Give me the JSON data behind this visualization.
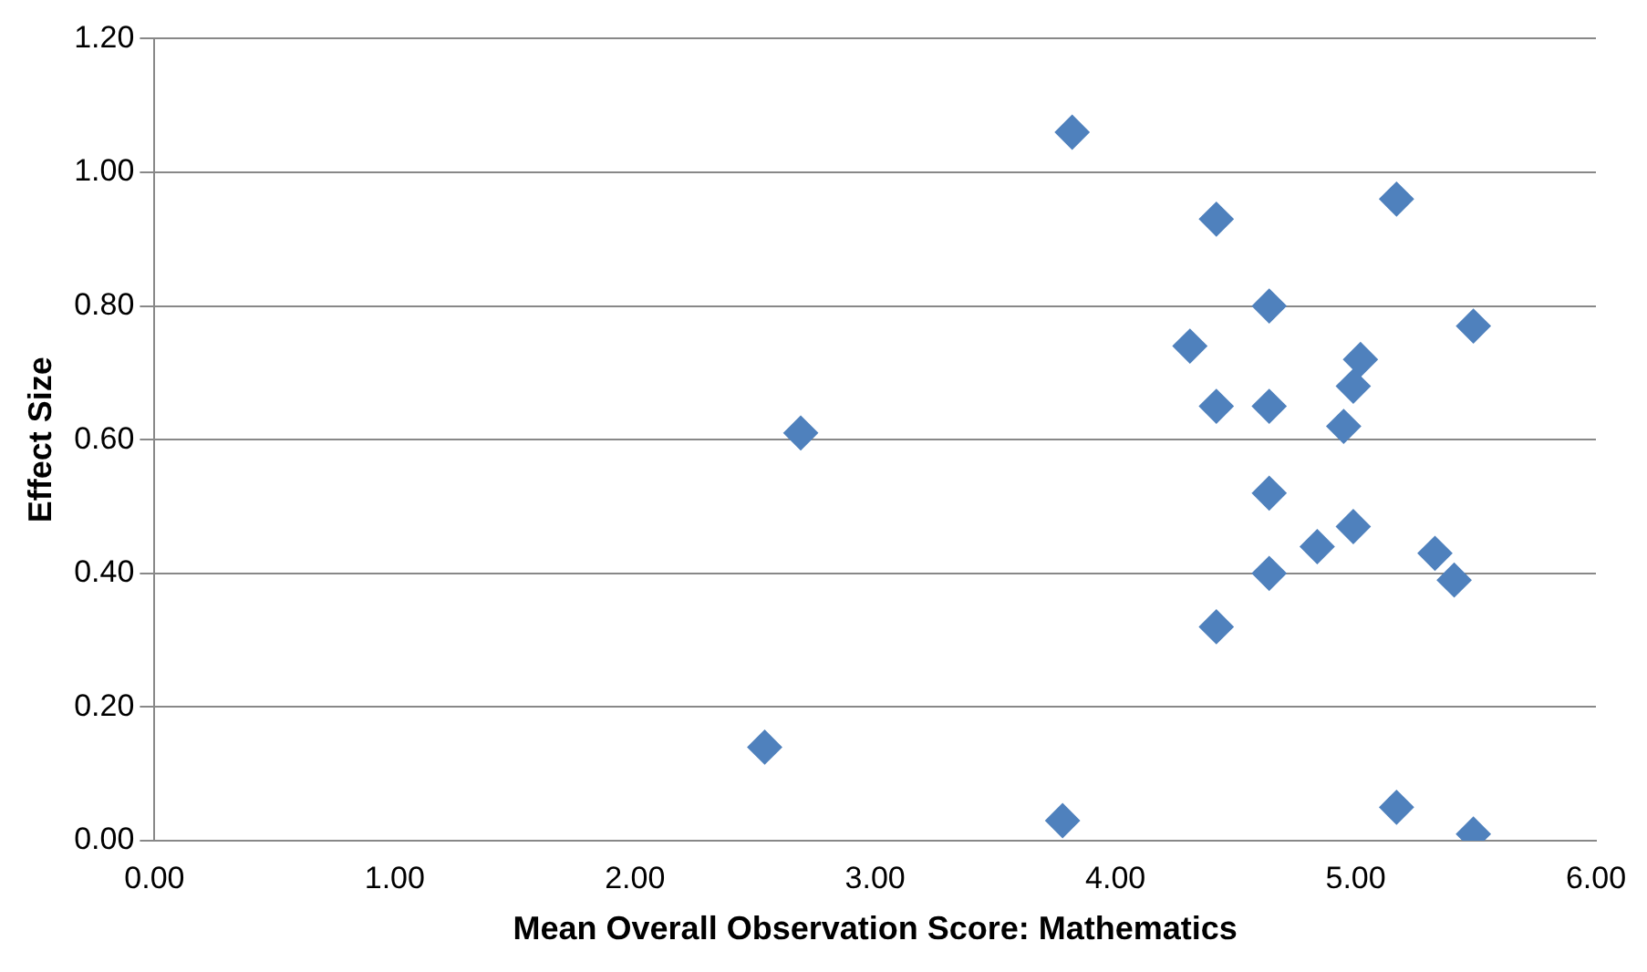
{
  "chart_data": {
    "type": "scatter",
    "xlabel": "Mean Overall Observation Score: Mathematics",
    "ylabel": "Effect Size",
    "series": [
      {
        "color": "#4f81bd",
        "x": [
          3.82,
          4.42,
          5.17,
          4.64,
          4.31,
          5.49,
          5.02,
          4.99,
          4.42,
          4.64,
          4.95,
          2.69,
          4.64,
          4.99,
          4.84,
          5.33,
          5.41,
          4.64,
          4.42,
          2.54,
          3.78,
          5.17,
          5.49
        ],
        "values": [
          1.06,
          0.93,
          0.96,
          0.8,
          0.74,
          0.77,
          0.72,
          0.68,
          0.65,
          0.65,
          0.62,
          0.61,
          0.52,
          0.47,
          0.44,
          0.43,
          0.39,
          0.4,
          0.32,
          0.14,
          0.03,
          0.05,
          0.01
        ]
      }
    ],
    "xlim": [
      0,
      6
    ],
    "ylim": [
      0,
      1.2
    ],
    "xticks": [
      {
        "value": 0,
        "label": "0.00"
      },
      {
        "value": 1,
        "label": "1.00"
      },
      {
        "value": 2,
        "label": "2.00"
      },
      {
        "value": 3,
        "label": "3.00"
      },
      {
        "value": 4,
        "label": "4.00"
      },
      {
        "value": 5,
        "label": "5.00"
      },
      {
        "value": 6,
        "label": "6.00"
      }
    ],
    "yticks": [
      {
        "value": 0,
        "label": "0.00"
      },
      {
        "value": 0.2,
        "label": "0.20"
      },
      {
        "value": 0.4,
        "label": "0.40"
      },
      {
        "value": 0.6,
        "label": "0.60"
      },
      {
        "value": 0.8,
        "label": "0.80"
      },
      {
        "value": 1,
        "label": "1.00"
      },
      {
        "value": 1.2,
        "label": "1.20"
      }
    ],
    "grid": "y",
    "legend": false,
    "marker": "diamond"
  }
}
